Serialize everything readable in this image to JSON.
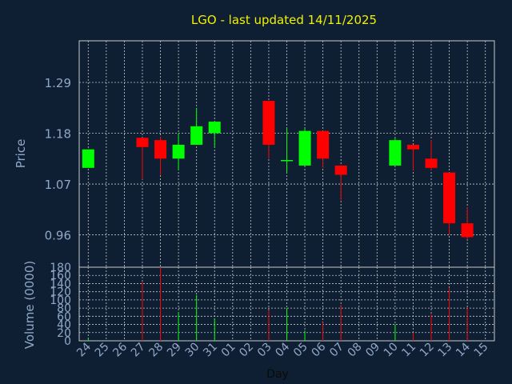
{
  "chart_data": [
    {
      "type": "candlestick",
      "title": "LGO - last updated 14/11/2025",
      "ylabel": "Price",
      "ylim": [
        0.89,
        1.38
      ],
      "yticks": [
        "0.96",
        "1.07",
        "1.18",
        "1.29"
      ],
      "ytick_values": [
        0.96,
        1.07,
        1.18,
        1.29
      ],
      "grid": true,
      "colors": {
        "up": "#00ff00",
        "down": "#ff0000",
        "background": "#0f1f33",
        "grid": "#c8c8c8"
      },
      "x": [
        "24",
        "25",
        "26",
        "27",
        "28",
        "29",
        "30",
        "31",
        "01",
        "02",
        "03",
        "04",
        "05",
        "06",
        "07",
        "08",
        "09",
        "10",
        "11",
        "12",
        "13",
        "14",
        "15"
      ],
      "candles": [
        {
          "x": "24",
          "open": 1.105,
          "high": 1.145,
          "low": 1.105,
          "close": 1.145
        },
        {
          "x": "27",
          "open": 1.17,
          "high": 1.17,
          "low": 1.08,
          "close": 1.15
        },
        {
          "x": "28",
          "open": 1.165,
          "high": 1.172,
          "low": 1.09,
          "close": 1.125
        },
        {
          "x": "29",
          "open": 1.125,
          "high": 1.18,
          "low": 1.1,
          "close": 1.155
        },
        {
          "x": "30",
          "open": 1.155,
          "high": 1.235,
          "low": 1.155,
          "close": 1.195
        },
        {
          "x": "31",
          "open": 1.18,
          "high": 1.205,
          "low": 1.15,
          "close": 1.205
        },
        {
          "x": "03",
          "open": 1.25,
          "high": 1.25,
          "low": 1.125,
          "close": 1.155
        },
        {
          "x": "04",
          "open": 1.12,
          "high": 1.19,
          "low": 1.095,
          "close": 1.122
        },
        {
          "x": "05",
          "open": 1.11,
          "high": 1.19,
          "low": 1.11,
          "close": 1.185
        },
        {
          "x": "06",
          "open": 1.185,
          "high": 1.185,
          "low": 1.105,
          "close": 1.125
        },
        {
          "x": "07",
          "open": 1.11,
          "high": 1.11,
          "low": 1.035,
          "close": 1.09
        },
        {
          "x": "10",
          "open": 1.11,
          "high": 1.17,
          "low": 1.11,
          "close": 1.165
        },
        {
          "x": "11",
          "open": 1.155,
          "high": 1.155,
          "low": 1.1,
          "close": 1.145
        },
        {
          "x": "12",
          "open": 1.125,
          "high": 1.165,
          "low": 1.1,
          "close": 1.105
        },
        {
          "x": "13",
          "open": 1.095,
          "high": 1.095,
          "low": 0.96,
          "close": 0.985
        },
        {
          "x": "14",
          "open": 0.985,
          "high": 1.02,
          "low": 0.95,
          "close": 0.955
        }
      ]
    },
    {
      "type": "bar",
      "ylabel": "Volume (0000)",
      "xlabel": "Day",
      "ylim": [
        0,
        180
      ],
      "yticks": [
        "0",
        "20",
        "40",
        "60",
        "80",
        "100",
        "120",
        "140",
        "160",
        "180"
      ],
      "ytick_values": [
        0,
        20,
        40,
        60,
        80,
        100,
        120,
        140,
        160,
        180
      ],
      "grid": true,
      "categories": [
        "24",
        "27",
        "28",
        "29",
        "30",
        "31",
        "03",
        "04",
        "05",
        "06",
        "07",
        "10",
        "11",
        "12",
        "13",
        "14"
      ],
      "values": [
        5,
        145,
        180,
        70,
        112,
        55,
        75,
        80,
        25,
        45,
        88,
        40,
        20,
        65,
        130,
        82
      ],
      "bar_colors": [
        "#00ff00",
        "#ff0000",
        "#ff0000",
        "#00ff00",
        "#00ff00",
        "#00ff00",
        "#ff0000",
        "#00ff00",
        "#00ff00",
        "#ff0000",
        "#ff0000",
        "#00ff00",
        "#ff0000",
        "#ff0000",
        "#ff0000",
        "#ff0000"
      ]
    }
  ]
}
